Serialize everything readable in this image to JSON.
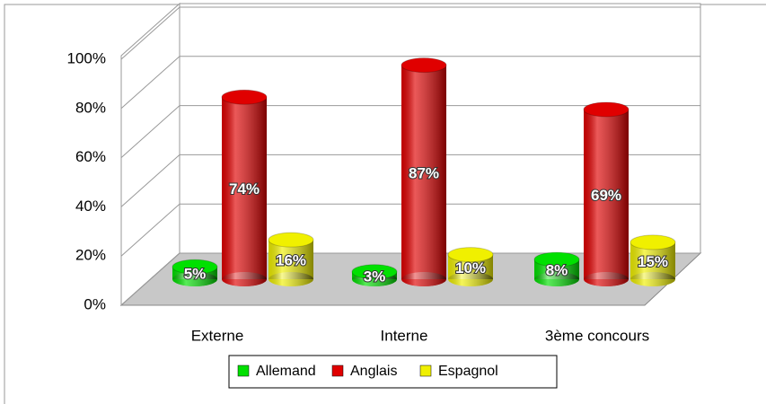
{
  "chart_data": {
    "type": "bar3d",
    "categories": [
      "Externe",
      "Interne",
      "3ème concours"
    ],
    "series": [
      {
        "name": "Allemand",
        "color": "#00e000",
        "values": [
          5,
          3,
          8
        ],
        "value_labels": [
          "5%",
          "3%",
          "8%"
        ]
      },
      {
        "name": "Anglais",
        "color": "#e00000",
        "values": [
          74,
          87,
          69
        ],
        "value_labels": [
          "74%",
          "87%",
          "69%"
        ]
      },
      {
        "name": "Espagnol",
        "color": "#f0f000",
        "values": [
          16,
          10,
          15
        ],
        "value_labels": [
          "16%",
          "10%",
          "15%"
        ]
      }
    ],
    "ylim": [
      0,
      100
    ],
    "yticks": [
      {
        "value": 0,
        "label": "0%"
      },
      {
        "value": 20,
        "label": "20%"
      },
      {
        "value": 40,
        "label": "40%"
      },
      {
        "value": 60,
        "label": "60%"
      },
      {
        "value": 80,
        "label": "80%"
      },
      {
        "value": 100,
        "label": "100%"
      }
    ],
    "grid": true,
    "legend": "bottom"
  }
}
